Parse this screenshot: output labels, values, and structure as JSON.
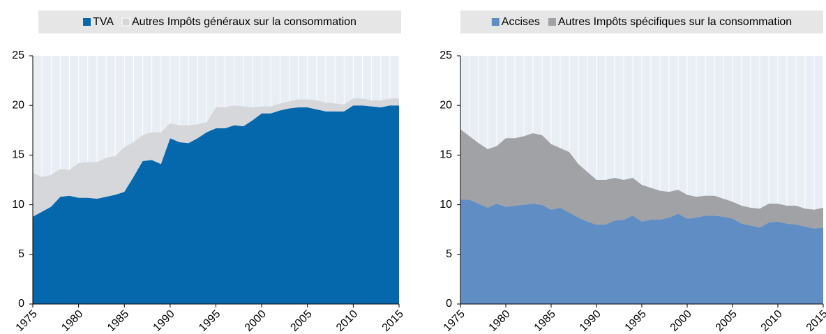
{
  "chart_data": [
    {
      "type": "area",
      "stacked": true,
      "x": [
        1975,
        1976,
        1977,
        1978,
        1979,
        1980,
        1981,
        1982,
        1983,
        1984,
        1985,
        1986,
        1987,
        1988,
        1989,
        1990,
        1991,
        1992,
        1993,
        1994,
        1995,
        1996,
        1997,
        1998,
        1999,
        2000,
        2001,
        2002,
        2003,
        2004,
        2005,
        2006,
        2007,
        2008,
        2009,
        2010,
        2011,
        2012,
        2013,
        2014,
        2015
      ],
      "series": [
        {
          "name": "TVA",
          "color": "#0568ad",
          "values": [
            8.8,
            9.3,
            9.8,
            10.8,
            10.9,
            10.7,
            10.7,
            10.6,
            10.8,
            11.0,
            11.3,
            12.8,
            14.4,
            14.5,
            14.1,
            16.7,
            16.3,
            16.2,
            16.7,
            17.3,
            17.7,
            17.7,
            18.0,
            17.9,
            18.5,
            19.2,
            19.2,
            19.5,
            19.7,
            19.8,
            19.8,
            19.6,
            19.4,
            19.4,
            19.4,
            20.0,
            20.0,
            19.9,
            19.8,
            20.0,
            20.0
          ]
        },
        {
          "name": "Autres Impôts généraux sur la consommation",
          "color": "#d5d7da",
          "values": [
            4.4,
            3.5,
            3.2,
            2.8,
            2.6,
            3.5,
            3.6,
            3.7,
            3.9,
            3.9,
            4.5,
            3.5,
            2.6,
            2.8,
            3.2,
            1.5,
            1.7,
            1.8,
            1.4,
            1.0,
            2.1,
            2.1,
            2.0,
            2.0,
            1.3,
            0.7,
            0.7,
            0.7,
            0.7,
            0.8,
            0.8,
            0.9,
            0.9,
            0.8,
            0.7,
            0.7,
            0.7,
            0.6,
            0.7,
            0.7,
            0.7
          ]
        }
      ],
      "xlim": [
        1975,
        2015
      ],
      "xticks": [
        1975,
        1980,
        1985,
        1990,
        1995,
        2000,
        2005,
        2010,
        2015
      ],
      "ylim": [
        0,
        25
      ],
      "yticks": [
        0,
        5,
        10,
        15,
        20,
        25
      ],
      "grid": true,
      "legend": "top"
    },
    {
      "type": "area",
      "stacked": true,
      "x": [
        1975,
        1976,
        1977,
        1978,
        1979,
        1980,
        1981,
        1982,
        1983,
        1984,
        1985,
        1986,
        1987,
        1988,
        1989,
        1990,
        1991,
        1992,
        1993,
        1994,
        1995,
        1996,
        1997,
        1998,
        1999,
        2000,
        2001,
        2002,
        2003,
        2004,
        2005,
        2006,
        2007,
        2008,
        2009,
        2010,
        2011,
        2012,
        2013,
        2014,
        2015
      ],
      "series": [
        {
          "name": "Accises",
          "color": "#5f8dc4",
          "values": [
            10.5,
            10.5,
            10.1,
            9.7,
            10.1,
            9.8,
            9.9,
            10.0,
            10.1,
            10.0,
            9.5,
            9.7,
            9.2,
            8.7,
            8.3,
            8.0,
            8.0,
            8.4,
            8.5,
            8.9,
            8.3,
            8.5,
            8.5,
            8.7,
            9.1,
            8.6,
            8.7,
            8.9,
            8.9,
            8.8,
            8.6,
            8.1,
            7.9,
            7.7,
            8.2,
            8.3,
            8.1,
            8.0,
            7.8,
            7.6,
            7.7
          ]
        },
        {
          "name": "Autres Impôts spécifiques sur la consommation",
          "color": "#a0a2a5",
          "values": [
            7.1,
            6.4,
            6.1,
            5.9,
            5.8,
            6.9,
            6.8,
            6.9,
            7.1,
            7.0,
            6.6,
            6.0,
            6.1,
            5.4,
            5.0,
            4.5,
            4.5,
            4.3,
            4.0,
            3.8,
            3.7,
            3.2,
            2.9,
            2.6,
            2.4,
            2.4,
            2.1,
            2.0,
            2.0,
            1.8,
            1.7,
            1.8,
            1.8,
            1.9,
            1.9,
            1.8,
            1.8,
            1.9,
            1.8,
            1.9,
            2.0
          ]
        }
      ],
      "xlim": [
        1975,
        2015
      ],
      "xticks": [
        1975,
        1980,
        1985,
        1990,
        1995,
        2000,
        2005,
        2010,
        2015
      ],
      "ylim": [
        0,
        25
      ],
      "yticks": [
        0,
        5,
        10,
        15,
        20,
        25
      ],
      "grid": true,
      "legend": "top"
    }
  ]
}
